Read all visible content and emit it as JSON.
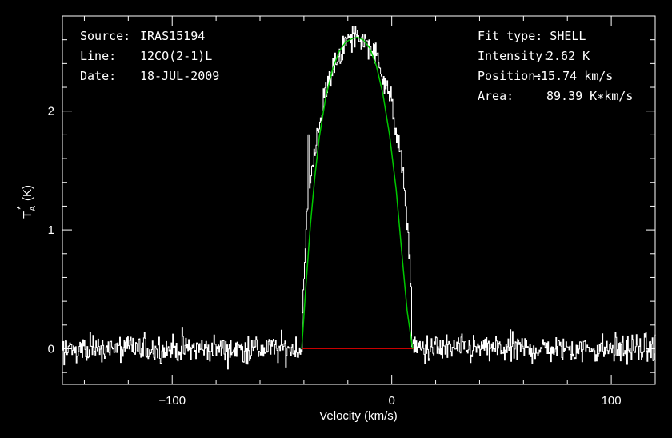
{
  "header_left": {
    "source_label": "Source:",
    "source_value": "IRAS15194",
    "line_label": "Line:",
    "line_value": "12CO(2-1)L",
    "date_label": "Date:",
    "date_value": "18-JUL-2009"
  },
  "header_right": {
    "fit_type": "Fit type: SHELL",
    "intensity_label": "Intensity:",
    "intensity_value": "2.62 K",
    "position_label": "Position:",
    "position_value": "−15.74 km/s",
    "area_label": "Area:",
    "area_value": "89.39 K∗km/s"
  },
  "colors": {
    "background": "#000000",
    "spectrum": "#ffffff",
    "fit": "#00c800",
    "baseline": "#c80000",
    "frame": "#ffffff"
  },
  "chart_data": {
    "type": "line",
    "xlabel": "Velocity (km/s)",
    "ylabel": "T_A* (K)",
    "ylabel_main": "T",
    "ylabel_sub": "A",
    "ylabel_sup": "*",
    "ylabel_unit": "(K)",
    "xlim": [
      -150,
      120
    ],
    "ylim": [
      -0.3,
      2.8
    ],
    "x_ticks": [
      -100,
      0,
      100
    ],
    "x_tick_labels": [
      "−100",
      "0",
      "100"
    ],
    "y_ticks": [
      0,
      1,
      2
    ],
    "y_tick_labels": [
      "0",
      "1",
      "2"
    ],
    "noise_rms": 0.06,
    "spike": {
      "x": -38,
      "y": 1.8
    },
    "series": [
      {
        "role": "spectrum",
        "style": "histogram",
        "channel_width_kms": 0.33,
        "profile_peak": 2.62,
        "profile_center": -15.74,
        "profile_halfwidth": 25
      },
      {
        "role": "fit",
        "model": "shell",
        "x_min": -41,
        "x_max": 9.5,
        "peak": 2.62,
        "center": -15.74,
        "halfwidth": 25.25,
        "x": [
          -41,
          -39,
          -37,
          -35,
          -33,
          -30,
          -27,
          -24,
          -21,
          -18,
          -15.74,
          -13,
          -10,
          -7,
          -4,
          -1,
          2,
          5,
          7,
          9.5
        ],
        "y": [
          0,
          0.55,
          1.05,
          1.45,
          1.78,
          2.12,
          2.35,
          2.5,
          2.58,
          2.61,
          2.62,
          2.6,
          2.53,
          2.38,
          2.14,
          1.8,
          1.34,
          0.72,
          0.32,
          0
        ]
      },
      {
        "role": "baseline",
        "y": 0,
        "x_range": [
          -41,
          10
        ]
      }
    ]
  }
}
